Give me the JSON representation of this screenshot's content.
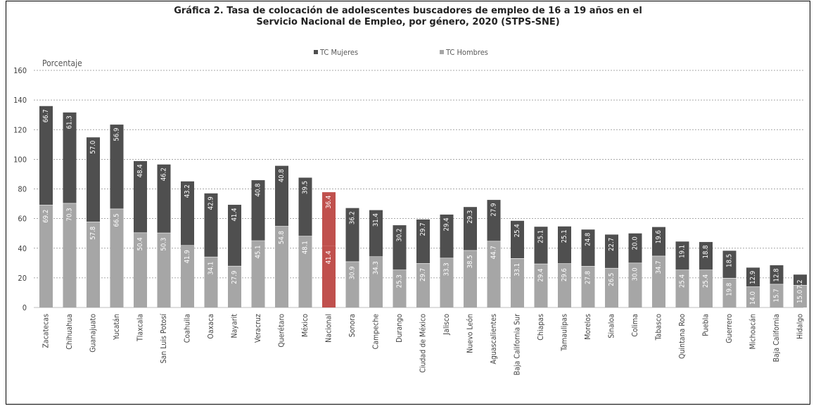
{
  "title_line1": "Gráfica 2. Tasa de colocación de adolescentes buscadores de empleo de 16 a 19 años en el",
  "title_line2": "Servicio Nacional de Empleo, por género, 2020 (STPS-SNE)",
  "colors": {
    "mujeres": "#4f4f4f",
    "hombres": "#a6a6a6",
    "nacional": "#c0504d",
    "grid": "#8c8c8c",
    "text": "#404040"
  },
  "chart_data": {
    "type": "bar",
    "stacked": true,
    "title": "Gráfica 2. Tasa de colocación de adolescentes buscadores de empleo de 16 a 19 años en el Servicio Nacional de Empleo, por género, 2020 (STPS-SNE)",
    "ylabel": "Porcentaje",
    "xlabel": "",
    "ylim": [
      0,
      160
    ],
    "yticks": [
      0,
      20,
      40,
      60,
      80,
      100,
      120,
      140,
      160
    ],
    "grid": true,
    "legend_position": "top-center",
    "highlight_category": "Nacional",
    "categories": [
      "Zacatecas",
      "Chihuahua",
      "Guanajuato",
      "Yucatán",
      "Tlaxcala",
      "San Luis Potosí",
      "Coahuila",
      "Oaxaca",
      "Nayarit",
      "Veracruz",
      "Querétaro",
      "México",
      "Nacional",
      "Sonora",
      "Campeche",
      "Durango",
      "Ciudad de México",
      "Jalisco",
      "Nuevo León",
      "Aguascalientes",
      "Baja California Sur",
      "Chiapas",
      "Tamaulipas",
      "Morelos",
      "Sinaloa",
      "Colima",
      "Tabasco",
      "Quintana Roo",
      "Puebla",
      "Guerrero",
      "Michoacán",
      "Baja California",
      "Hidalgo"
    ],
    "series": [
      {
        "name": "TC Hombres",
        "values": [
          69.2,
          70.3,
          57.8,
          66.5,
          50.4,
          50.3,
          41.9,
          34.1,
          27.9,
          45.1,
          54.8,
          48.1,
          41.4,
          30.9,
          34.3,
          25.3,
          29.7,
          33.3,
          38.5,
          44.7,
          33.1,
          29.4,
          29.6,
          27.8,
          26.5,
          30.0,
          34.7,
          25.4,
          25.4,
          19.8,
          14.0,
          15.7,
          15.0
        ]
      },
      {
        "name": "TC Mujeres",
        "values": [
          66.7,
          61.3,
          57.0,
          56.9,
          48.4,
          46.2,
          43.2,
          42.9,
          41.4,
          40.8,
          40.8,
          39.5,
          36.4,
          36.2,
          31.4,
          30.2,
          29.7,
          29.4,
          29.3,
          27.9,
          25.4,
          25.1,
          25.1,
          24.8,
          22.7,
          20.0,
          19.6,
          19.1,
          18.8,
          18.5,
          12.9,
          12.8,
          7.2
        ]
      }
    ],
    "labels": {
      "hombres": [
        "69.2",
        "70.3",
        "57.8",
        "66.5",
        "50.4",
        "50.3",
        "41.9",
        "34.1",
        "27.9",
        "45.1",
        "54.8",
        "48.1",
        "41.4",
        "30.9",
        "34.3",
        "25.3",
        "29.7",
        "33.3",
        "38.5",
        "44.7",
        "33.1",
        "29.4",
        "29.6",
        "27.8",
        "26.5",
        "30.0",
        "34.7",
        "25.4",
        "25.4",
        "19.8",
        "14.0",
        "15.7",
        "15.0"
      ],
      "mujeres": [
        "66.7",
        "61.3",
        "57.0",
        "56.9",
        "48.4",
        "46.2",
        "43.2",
        "42.9",
        "41.4",
        "40.8",
        "40.8",
        "39.5",
        "36.4",
        "36.2",
        "31.4",
        "30.2",
        "29.7",
        "29.4",
        "29.3",
        "27.9",
        "25.4",
        "25.1",
        "25.1",
        "24.8",
        "22.7",
        "20.0",
        "19.6",
        "19.1",
        "18.8",
        "18.5",
        "12.9",
        "12.8",
        "7.2"
      ]
    }
  }
}
